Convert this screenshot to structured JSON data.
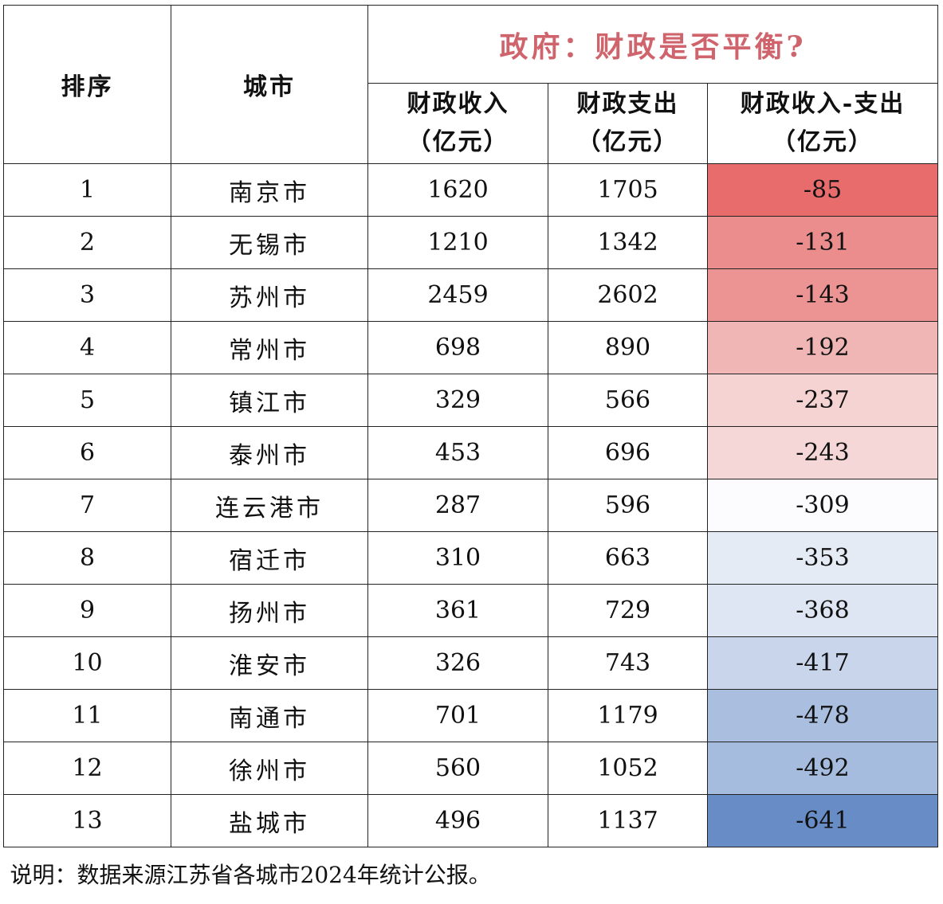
{
  "header": {
    "rank": "排序",
    "city": "城市",
    "title": "政府：财政是否平衡?",
    "revenue_line1": "财政收入",
    "revenue_line2": "（亿元）",
    "expenditure_line1": "财政支出",
    "expenditure_line2": "（亿元）",
    "balance_line1": "财政收入-支出",
    "balance_line2": "（亿元）"
  },
  "rows": [
    {
      "rank": "1",
      "city": "南京市",
      "revenue": "1620",
      "expenditure": "1705",
      "balance": "-85",
      "color": "#e86c6c"
    },
    {
      "rank": "2",
      "city": "无锡市",
      "revenue": "1210",
      "expenditure": "1342",
      "balance": "-131",
      "color": "#eb8d8d"
    },
    {
      "rank": "3",
      "city": "苏州市",
      "revenue": "2459",
      "expenditure": "2602",
      "balance": "-143",
      "color": "#ec9494"
    },
    {
      "rank": "4",
      "city": "常州市",
      "revenue": "698",
      "expenditure": "890",
      "balance": "-192",
      "color": "#f0b5b5"
    },
    {
      "rank": "5",
      "city": "镇江市",
      "revenue": "329",
      "expenditure": "566",
      "balance": "-237",
      "color": "#f5d3d3"
    },
    {
      "rank": "6",
      "city": "泰州市",
      "revenue": "453",
      "expenditure": "696",
      "balance": "-243",
      "color": "#f5d7d7"
    },
    {
      "rank": "7",
      "city": "连云港市",
      "revenue": "287",
      "expenditure": "596",
      "balance": "-309",
      "color": "#fcfcfe"
    },
    {
      "rank": "8",
      "city": "宿迁市",
      "revenue": "310",
      "expenditure": "663",
      "balance": "-353",
      "color": "#e5ebf5"
    },
    {
      "rank": "9",
      "city": "扬州市",
      "revenue": "361",
      "expenditure": "729",
      "balance": "-368",
      "color": "#dfe6f3"
    },
    {
      "rank": "10",
      "city": "淮安市",
      "revenue": "326",
      "expenditure": "743",
      "balance": "-417",
      "color": "#c9d5ea"
    },
    {
      "rank": "11",
      "city": "南通市",
      "revenue": "701",
      "expenditure": "1179",
      "balance": "-478",
      "color": "#aabfe0"
    },
    {
      "rank": "12",
      "city": "徐州市",
      "revenue": "560",
      "expenditure": "1052",
      "balance": "-492",
      "color": "#a6bcdf"
    },
    {
      "rank": "13",
      "city": "盐城市",
      "revenue": "496",
      "expenditure": "1137",
      "balance": "-641",
      "color": "#678cc6"
    }
  ],
  "note": "说明：数据来源江苏省各城市2024年统计公报。"
}
